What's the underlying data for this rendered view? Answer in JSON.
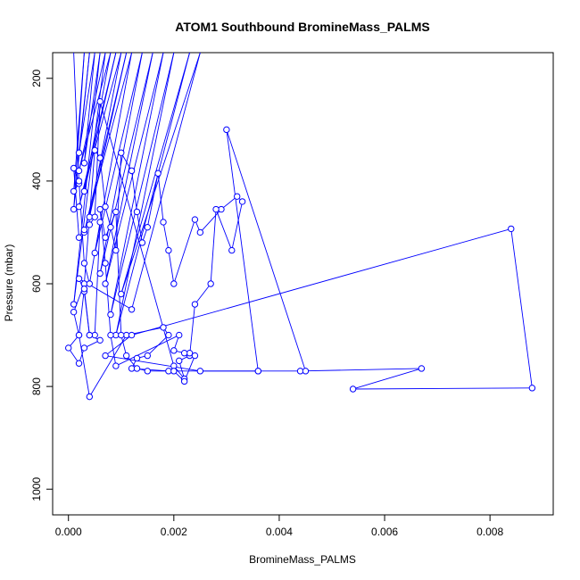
{
  "chart_data": {
    "type": "scatter",
    "title": "ATOM1 Southbound BromineMass_PALMS",
    "xlabel": "BromineMass_PALMS",
    "ylabel": "Pressure (mbar)",
    "xlim": [
      -0.0003,
      0.0092
    ],
    "ylim": [
      1050,
      150
    ],
    "y_reversed": true,
    "x_ticks": [
      "0.000",
      "0.002",
      "0.004",
      "0.006",
      "0.008"
    ],
    "y_ticks": [
      "200",
      "400",
      "600",
      "800",
      "1000"
    ],
    "x_tick_values": [
      0,
      0.002,
      0.004,
      0.006,
      0.008
    ],
    "y_tick_values": [
      200,
      400,
      600,
      800,
      1000
    ],
    "series": [
      {
        "color": "#0000ff",
        "marker": "open-circle",
        "connected": true,
        "points": [
          [
            0.0001,
            150
          ],
          [
            0.0002,
            405
          ],
          [
            0.0001,
            420
          ],
          [
            0.0003,
            150
          ],
          [
            0.0001,
            455
          ],
          [
            0.0004,
            150
          ],
          [
            0.0002,
            345
          ],
          [
            0.0005,
            150
          ],
          [
            0.0003,
            365
          ],
          [
            0.0006,
            150
          ],
          [
            0.0001,
            640
          ],
          [
            0.0007,
            150
          ],
          [
            0.0002,
            380
          ],
          [
            0.0008,
            150
          ],
          [
            0.0003,
            420
          ],
          [
            0.0009,
            150
          ],
          [
            0.0002,
            450
          ],
          [
            0.001,
            150
          ],
          [
            0.0004,
            470
          ],
          [
            0.0011,
            150
          ],
          [
            0.0003,
            500
          ],
          [
            0.0012,
            150
          ],
          [
            0.0005,
            540
          ],
          [
            0.0014,
            150
          ],
          [
            0.0006,
            580
          ],
          [
            0.0016,
            150
          ],
          [
            0.0007,
            600
          ],
          [
            0.0018,
            150
          ],
          [
            0.0008,
            660
          ],
          [
            0.002,
            150
          ],
          [
            0.0009,
            700
          ],
          [
            0.0023,
            150
          ],
          [
            0.001,
            620
          ],
          [
            0.0025,
            150
          ],
          [
            0.0012,
            650
          ],
          [
            0.0002,
            590
          ],
          [
            0.0003,
            615
          ],
          [
            0.0004,
            700
          ],
          [
            0.0006,
            710
          ],
          [
            0.0003,
            725
          ],
          [
            0.0002,
            755
          ],
          [
            0.0,
            725
          ],
          [
            0.0002,
            700
          ],
          [
            0.0001,
            655
          ],
          [
            0.0003,
            600
          ],
          [
            0.0005,
            340
          ],
          [
            0.0006,
            355
          ],
          [
            0.0007,
            450
          ],
          [
            0.0008,
            490
          ],
          [
            0.0009,
            535
          ],
          [
            0.001,
            345
          ],
          [
            0.0012,
            380
          ],
          [
            0.0013,
            460
          ],
          [
            0.0014,
            520
          ],
          [
            0.0015,
            490
          ],
          [
            0.0017,
            385
          ],
          [
            0.0018,
            480
          ],
          [
            0.0019,
            535
          ],
          [
            0.002,
            600
          ],
          [
            0.0024,
            475
          ],
          [
            0.0025,
            500
          ],
          [
            0.0029,
            455
          ],
          [
            0.0032,
            430
          ],
          [
            0.0033,
            440
          ],
          [
            0.0031,
            535
          ],
          [
            0.0028,
            455
          ],
          [
            0.0027,
            600
          ],
          [
            0.0024,
            640
          ],
          [
            0.0023,
            740
          ],
          [
            0.0021,
            750
          ],
          [
            0.0022,
            785
          ],
          [
            0.002,
            760
          ],
          [
            0.0006,
            245
          ],
          [
            0.0005,
            470
          ],
          [
            0.0004,
            485
          ],
          [
            0.0003,
            495
          ],
          [
            0.0002,
            510
          ],
          [
            0.0001,
            375
          ],
          [
            0.0002,
            400
          ],
          [
            0.0003,
            560
          ],
          [
            0.0004,
            600
          ],
          [
            0.0006,
            480
          ],
          [
            0.0005,
            700
          ],
          [
            0.0004,
            700
          ],
          [
            0.0003,
            610
          ],
          [
            0.0002,
            700
          ],
          [
            0.0004,
            820
          ],
          [
            0.0011,
            700
          ],
          [
            0.0018,
            685
          ],
          [
            0.0019,
            700
          ],
          [
            0.0015,
            740
          ],
          [
            0.0013,
            745
          ],
          [
            0.0012,
            765
          ],
          [
            0.0019,
            770
          ],
          [
            0.002,
            770
          ],
          [
            0.0022,
            790
          ],
          [
            0.0024,
            740
          ],
          [
            0.0023,
            735
          ],
          [
            0.0022,
            735
          ],
          [
            0.002,
            730
          ],
          [
            0.0021,
            700
          ],
          [
            0.0009,
            760
          ],
          [
            0.0008,
            700
          ],
          [
            0.0007,
            560
          ],
          [
            0.0006,
            455
          ],
          [
            0.0007,
            510
          ],
          [
            0.0009,
            460
          ],
          [
            0.001,
            700
          ],
          [
            0.0011,
            740
          ],
          [
            0.0013,
            765
          ],
          [
            0.0015,
            770
          ],
          [
            0.0036,
            770
          ],
          [
            0.0044,
            770
          ],
          [
            0.0067,
            765
          ],
          [
            0.0054,
            805
          ],
          [
            0.0088,
            803
          ],
          [
            0.0084,
            493
          ],
          [
            0.0012,
            700
          ],
          [
            0.0007,
            740
          ],
          [
            0.0025,
            770
          ],
          [
            0.0036,
            770
          ],
          [
            0.003,
            300
          ],
          [
            0.0045,
            770
          ]
        ]
      }
    ]
  }
}
